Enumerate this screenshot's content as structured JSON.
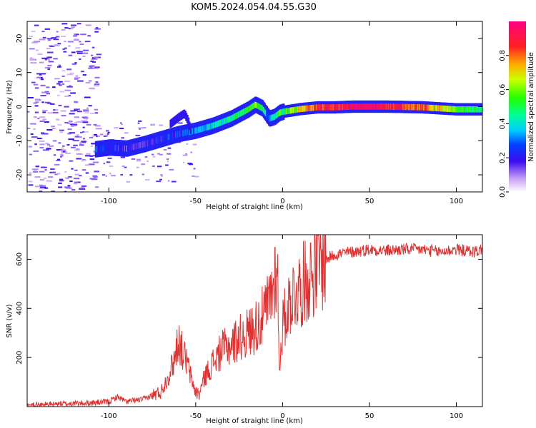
{
  "title": "KOM5.2024.054.04.55.G30",
  "chart_data": [
    {
      "type": "heatmap",
      "xlabel": "Height of straight line (km)",
      "ylabel": "Frequency (Hz)",
      "xlim": [
        -147,
        115
      ],
      "ylim": [
        -25,
        25
      ],
      "xticks": [
        "-100",
        "-50",
        "0",
        "50",
        "100"
      ],
      "yticks": [
        "-20",
        "-10",
        "0",
        "10",
        "20"
      ],
      "colorbar": {
        "label": "Normalized spectral amplitude",
        "range": [
          0,
          1
        ],
        "ticks": [
          "0.0",
          "0.2",
          "0.4",
          "0.6",
          "0.8"
        ]
      },
      "ridge": {
        "x": [
          -108,
          -100,
          -90,
          -80,
          -70,
          -60,
          -50,
          -40,
          -30,
          -20,
          -16,
          -12,
          -8,
          -5,
          -2,
          0,
          10,
          20,
          30,
          40,
          50,
          60,
          70,
          80,
          90,
          100,
          110
        ],
        "freq": [
          -12.5,
          -12,
          -12.3,
          -11,
          -9.5,
          -8,
          -7,
          -5.5,
          -3.5,
          -0.8,
          0.6,
          -0.5,
          -3.5,
          -3,
          -1.8,
          -1.5,
          -0.7,
          -0.2,
          -0.2,
          0,
          0,
          0,
          -0.1,
          -0.2,
          -0.5,
          -0.8,
          -0.8
        ],
        "amplitude": [
          0.25,
          0.2,
          0.18,
          0.2,
          0.22,
          0.25,
          0.3,
          0.42,
          0.45,
          0.5,
          0.6,
          0.45,
          0.3,
          0.45,
          0.55,
          0.5,
          0.7,
          0.85,
          0.85,
          0.95,
          0.95,
          0.9,
          0.85,
          0.8,
          0.7,
          0.55,
          0.5
        ]
      },
      "secondary_branch": {
        "x": [
          -65,
          -60,
          -57,
          -55,
          -53
        ],
        "freq": [
          -5,
          -3,
          -2,
          -4,
          -8
        ]
      }
    },
    {
      "type": "line",
      "xlabel": "Height of straight line (km)",
      "ylabel": "SNR (v/v)",
      "xlim": [
        -147,
        115
      ],
      "ylim": [
        0,
        700
      ],
      "xticks": [
        "-100",
        "-50",
        "0",
        "50",
        "100"
      ],
      "yticks": [
        "200",
        "400",
        "600"
      ],
      "color": "#e03030",
      "series": [
        {
          "x": [
            -147,
            -130,
            -110,
            -100,
            -95,
            -90,
            -80,
            -70,
            -66,
            -62,
            -60,
            -58,
            -55,
            -52,
            -50,
            -48,
            -45,
            -40,
            -35,
            -30,
            -25,
            -20,
            -15,
            -10,
            -8,
            -5,
            -3,
            -2,
            0,
            5,
            10,
            15,
            20,
            25,
            30,
            40,
            50,
            60,
            70,
            80,
            90,
            100,
            110,
            115
          ],
          "y": [
            5,
            10,
            15,
            20,
            40,
            20,
            30,
            60,
            120,
            200,
            280,
            230,
            180,
            100,
            60,
            50,
            120,
            180,
            230,
            250,
            280,
            300,
            330,
            380,
            420,
            500,
            620,
            150,
            330,
            450,
            480,
            530,
            570,
            600,
            620,
            630,
            640,
            635,
            640,
            640,
            630,
            640,
            630,
            640
          ]
        }
      ]
    }
  ]
}
